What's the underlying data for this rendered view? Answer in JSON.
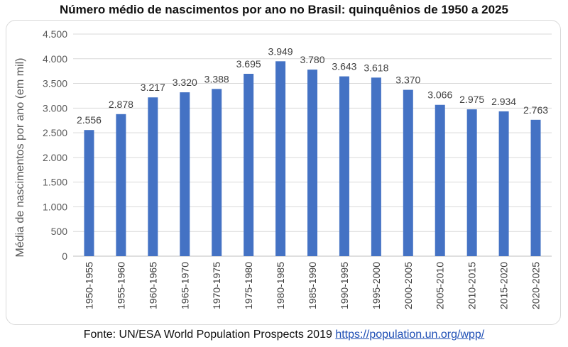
{
  "title": "Número médio de nascimentos por ano no Brasil: quinquênios de 1950 a 2025",
  "source": {
    "text": "Fonte: UN/ESA World Population Prospects 2019",
    "link": "https://population.un.org/wpp/"
  },
  "chart_data": {
    "type": "bar",
    "title": "Número médio de nascimentos por ano no Brasil: quinquênios de 1950 a 2025",
    "ylabel": "Média de nascimentos por ano (em mil)",
    "xlabel": "",
    "ylim": [
      0,
      4500
    ],
    "yticks": [
      0,
      500,
      1000,
      1500,
      2000,
      2500,
      3000,
      3500,
      4000,
      4500
    ],
    "ytick_labels": [
      "0",
      "500",
      "1.000",
      "1.500",
      "2.000",
      "2.500",
      "3.000",
      "3.500",
      "4.000",
      "4.500"
    ],
    "grid": true,
    "bar_color": "#4472c4",
    "categories": [
      "1950-1955",
      "1955-1960",
      "1960-1965",
      "1965-1970",
      "1970-1975",
      "1975-1980",
      "1980-1985",
      "1985-1990",
      "1990-1995",
      "1995-2000",
      "2000-2005",
      "2005-2010",
      "2010-2015",
      "2015-2020",
      "2020-2025"
    ],
    "values": [
      2556,
      2878,
      3217,
      3320,
      3388,
      3695,
      3949,
      3780,
      3643,
      3618,
      3370,
      3066,
      2975,
      2934,
      2763
    ],
    "value_labels": [
      "2.556",
      "2.878",
      "3.217",
      "3.320",
      "3.388",
      "3.695",
      "3.949",
      "3.780",
      "3.643",
      "3.618",
      "3.370",
      "3.066",
      "2.975",
      "2.934",
      "2.763"
    ]
  }
}
